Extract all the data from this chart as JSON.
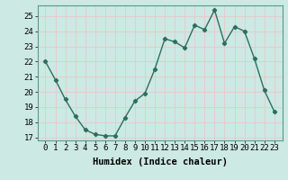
{
  "xlabel": "Humidex (Indice chaleur)",
  "x": [
    0,
    1,
    2,
    3,
    4,
    5,
    6,
    7,
    8,
    9,
    10,
    11,
    12,
    13,
    14,
    15,
    16,
    17,
    18,
    19,
    20,
    21,
    22,
    23
  ],
  "y": [
    22,
    20.8,
    19.5,
    18.4,
    17.5,
    17.2,
    17.1,
    17.1,
    18.3,
    19.4,
    19.9,
    21.5,
    23.5,
    23.3,
    22.9,
    24.4,
    24.1,
    25.4,
    23.2,
    24.3,
    24.0,
    22.2,
    20.1,
    18.7
  ],
  "line_color": "#2d6e5e",
  "marker": "D",
  "marker_size": 2.2,
  "bg_color": "#cce9e4",
  "grid_color": "#e8c8c8",
  "ylim": [
    16.8,
    25.7
  ],
  "yticks": [
    17,
    18,
    19,
    20,
    21,
    22,
    23,
    24,
    25
  ],
  "tick_fontsize": 6.5,
  "label_fontsize": 7.5,
  "line_width": 1.0
}
